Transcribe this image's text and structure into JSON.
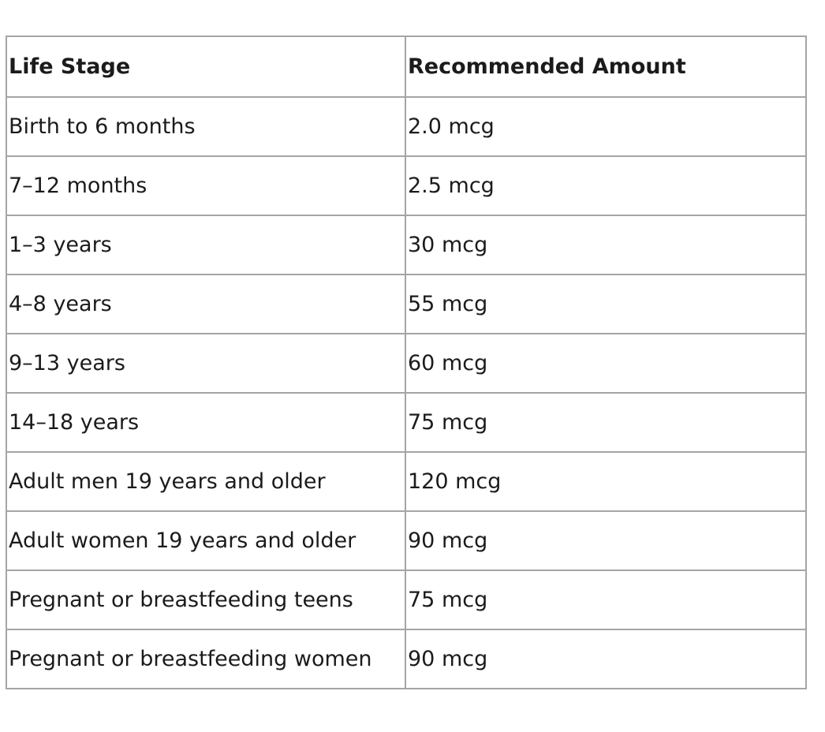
{
  "table": {
    "headers": [
      "Life Stage",
      "Recommended Amount"
    ],
    "rows": [
      [
        "Birth to 6 months",
        "2.0 mcg"
      ],
      [
        "7–12 months",
        "2.5 mcg"
      ],
      [
        "1–3 years",
        "30 mcg"
      ],
      [
        "4–8 years",
        "55 mcg"
      ],
      [
        "9–13 years",
        "60 mcg"
      ],
      [
        "14–18 years",
        "75 mcg"
      ],
      [
        "Adult men 19 years and older",
        "120 mcg"
      ],
      [
        "Adult women 19 years and older",
        "90 mcg"
      ],
      [
        "Pregnant or breastfeeding teens",
        "75 mcg"
      ],
      [
        "Pregnant or breastfeeding women",
        "90 mcg"
      ]
    ]
  }
}
